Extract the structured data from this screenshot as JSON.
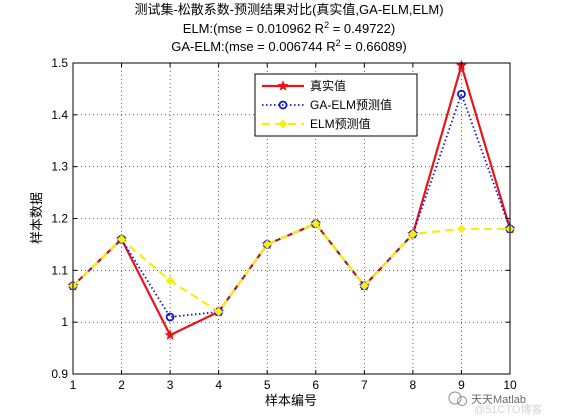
{
  "chart_data": {
    "type": "line",
    "title": "测试集-松散系数-预测结果对比(真实值,GA-ELM,ELM)",
    "subtitle_elm_prefix": "ELM:(mse = 0.010962 R",
    "subtitle_elm_suffix": " = 0.49722)",
    "subtitle_ga_prefix": "GA-ELM:(mse = 0.006744 R",
    "subtitle_ga_suffix": " = 0.66089)",
    "superscript": "2",
    "xlabel": "样本编号",
    "ylabel": "样本数据",
    "xlim": [
      1,
      10
    ],
    "ylim": [
      0.9,
      1.5
    ],
    "x_ticks": [
      "1",
      "2",
      "3",
      "4",
      "5",
      "6",
      "7",
      "8",
      "9",
      "10"
    ],
    "y_ticks": [
      "0.9",
      "1",
      "1.1",
      "1.2",
      "1.3",
      "1.4",
      "1.5"
    ],
    "grid": true,
    "legend_position": "top-right",
    "x": [
      1,
      2,
      3,
      4,
      5,
      6,
      7,
      8,
      9,
      10
    ],
    "series": [
      {
        "name": "真实值",
        "color": "#e8141a",
        "marker": "star-solid",
        "values": [
          1.07,
          1.16,
          0.975,
          1.02,
          1.15,
          1.19,
          1.07,
          1.17,
          1.495,
          1.18
        ]
      },
      {
        "name": "GA-ELM预测值",
        "color": "#1616c8",
        "marker": "circle-dotted",
        "values": [
          1.07,
          1.16,
          1.01,
          1.02,
          1.15,
          1.19,
          1.07,
          1.17,
          1.44,
          1.18
        ]
      },
      {
        "name": "ELM预测值",
        "color": "#f5f00a",
        "marker": "diamond-dashed",
        "values": [
          1.07,
          1.16,
          1.08,
          1.02,
          1.15,
          1.19,
          1.07,
          1.17,
          1.18,
          1.18
        ]
      }
    ]
  },
  "watermark": {
    "label": "天天Matlab",
    "faint": "@51CTO博客"
  }
}
